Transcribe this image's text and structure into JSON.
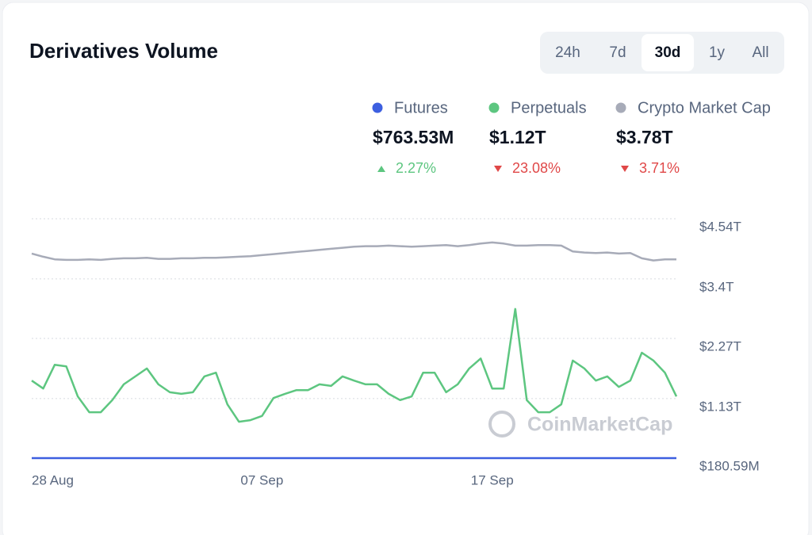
{
  "chart_data": {
    "type": "line",
    "title": "Derivatives Volume",
    "ranges": [
      "24h",
      "7d",
      "30d",
      "1y",
      "All"
    ],
    "active_range": 2,
    "watermark": "CoinMarketCap",
    "categories": [
      "28 Aug",
      null,
      null,
      null,
      null,
      null,
      null,
      null,
      null,
      null,
      null,
      null,
      null,
      null,
      null,
      null,
      null,
      null,
      null,
      null,
      "07 Sep",
      null,
      null,
      null,
      null,
      null,
      null,
      null,
      null,
      null,
      null,
      null,
      null,
      null,
      null,
      null,
      null,
      null,
      null,
      null,
      "17 Sep",
      null,
      null,
      null,
      null,
      null,
      null,
      null,
      null,
      null,
      null,
      null,
      null,
      null,
      null,
      null,
      null
    ],
    "ylim": [
      0.00018059,
      4.54
    ],
    "yticks": [
      {
        "value": 4.54,
        "label": "$4.54T"
      },
      {
        "value": 3.4,
        "label": "$3.4T"
      },
      {
        "value": 2.27,
        "label": "$2.27T"
      },
      {
        "value": 1.13,
        "label": "$1.13T"
      },
      {
        "value": 0.00018059,
        "label": "$180.59M"
      }
    ],
    "grid": true,
    "series": [
      {
        "name": "Futures",
        "color": "#3d5fe0",
        "summary": {
          "value": 0.00076353,
          "label": "$763.53M"
        },
        "change": {
          "value": 2.27,
          "label": "2.27%"
        },
        "values": [
          0.0008,
          0.0008,
          0.0008,
          0.0008,
          0.0008,
          0.0007,
          0.0007,
          0.0007,
          0.0008,
          0.0008,
          0.0008,
          0.0008,
          0.0008,
          0.0008,
          0.0008,
          0.0008,
          0.0008,
          0.0007,
          0.0007,
          0.0007,
          0.0007,
          0.0008,
          0.0008,
          0.0008,
          0.0008,
          0.0008,
          0.0008,
          0.0008,
          0.0008,
          0.0008,
          0.0008,
          0.0008,
          0.0008,
          0.0008,
          0.0008,
          0.0008,
          0.0008,
          0.0008,
          0.0008,
          0.0009,
          0.0008,
          0.0008,
          0.0009,
          0.0008,
          0.0007,
          0.0007,
          0.0007,
          0.0008,
          0.0008,
          0.0008,
          0.0008,
          0.0008,
          0.0008,
          0.0008,
          0.0008,
          0.0008,
          0.0008
        ]
      },
      {
        "name": "Perpetuals",
        "color": "#5dc680",
        "summary": {
          "value": 1.12,
          "label": "$1.12T"
        },
        "change": {
          "value": -23.08,
          "label": "23.08%"
        },
        "values": [
          1.47,
          1.32,
          1.77,
          1.74,
          1.17,
          0.87,
          0.87,
          1.1,
          1.4,
          1.55,
          1.7,
          1.4,
          1.25,
          1.22,
          1.25,
          1.55,
          1.62,
          1.02,
          0.69,
          0.72,
          0.8,
          1.14,
          1.22,
          1.29,
          1.29,
          1.4,
          1.37,
          1.55,
          1.47,
          1.4,
          1.4,
          1.22,
          1.1,
          1.17,
          1.62,
          1.62,
          1.25,
          1.4,
          1.7,
          1.89,
          1.32,
          1.32,
          2.83,
          1.1,
          0.87,
          0.87,
          1.02,
          1.85,
          1.7,
          1.47,
          1.55,
          1.35,
          1.47,
          2.0,
          1.85,
          1.62,
          1.17
        ]
      },
      {
        "name": "Crypto Market Cap",
        "color": "#a7abb8",
        "summary": {
          "value": 3.78,
          "label": "$3.78T"
        },
        "change": {
          "value": -3.71,
          "label": "3.71%"
        },
        "values": [
          3.88,
          3.82,
          3.77,
          3.76,
          3.76,
          3.77,
          3.76,
          3.78,
          3.79,
          3.79,
          3.8,
          3.78,
          3.78,
          3.79,
          3.79,
          3.8,
          3.8,
          3.81,
          3.82,
          3.83,
          3.85,
          3.87,
          3.89,
          3.91,
          3.93,
          3.95,
          3.97,
          3.99,
          4.01,
          4.02,
          4.02,
          4.03,
          4.02,
          4.01,
          4.02,
          4.03,
          4.04,
          4.02,
          4.04,
          4.07,
          4.09,
          4.07,
          4.03,
          4.03,
          4.04,
          4.04,
          4.03,
          3.92,
          3.9,
          3.89,
          3.9,
          3.88,
          3.89,
          3.79,
          3.75,
          3.77,
          3.77
        ]
      }
    ]
  }
}
